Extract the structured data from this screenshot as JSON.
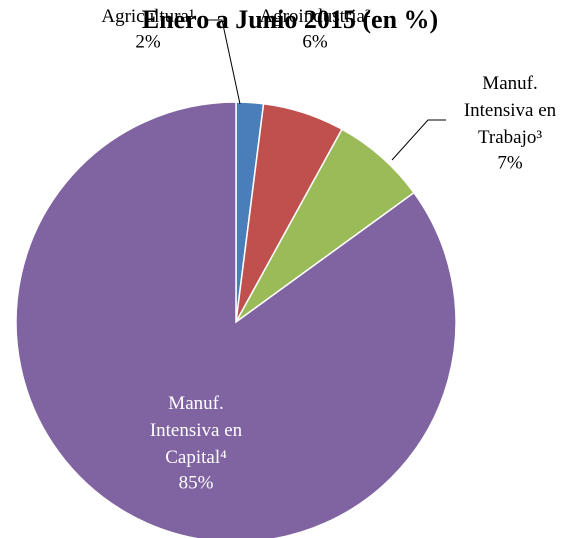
{
  "chart_data": {
    "type": "pie",
    "title": "Enero a Junio 2015 (en %)",
    "categories": [
      "Agricultura¹",
      "Agroindustria²",
      "Manuf. Intensiva en Trabajo³",
      "Manuf. Intensiva en Capital⁴"
    ],
    "values": [
      2,
      6,
      7,
      85
    ],
    "value_labels": [
      "2%",
      "6%",
      "7%",
      "85%"
    ],
    "colors": [
      "#4a7ebb",
      "#c0504d",
      "#9bbb59",
      "#8064a2"
    ]
  }
}
